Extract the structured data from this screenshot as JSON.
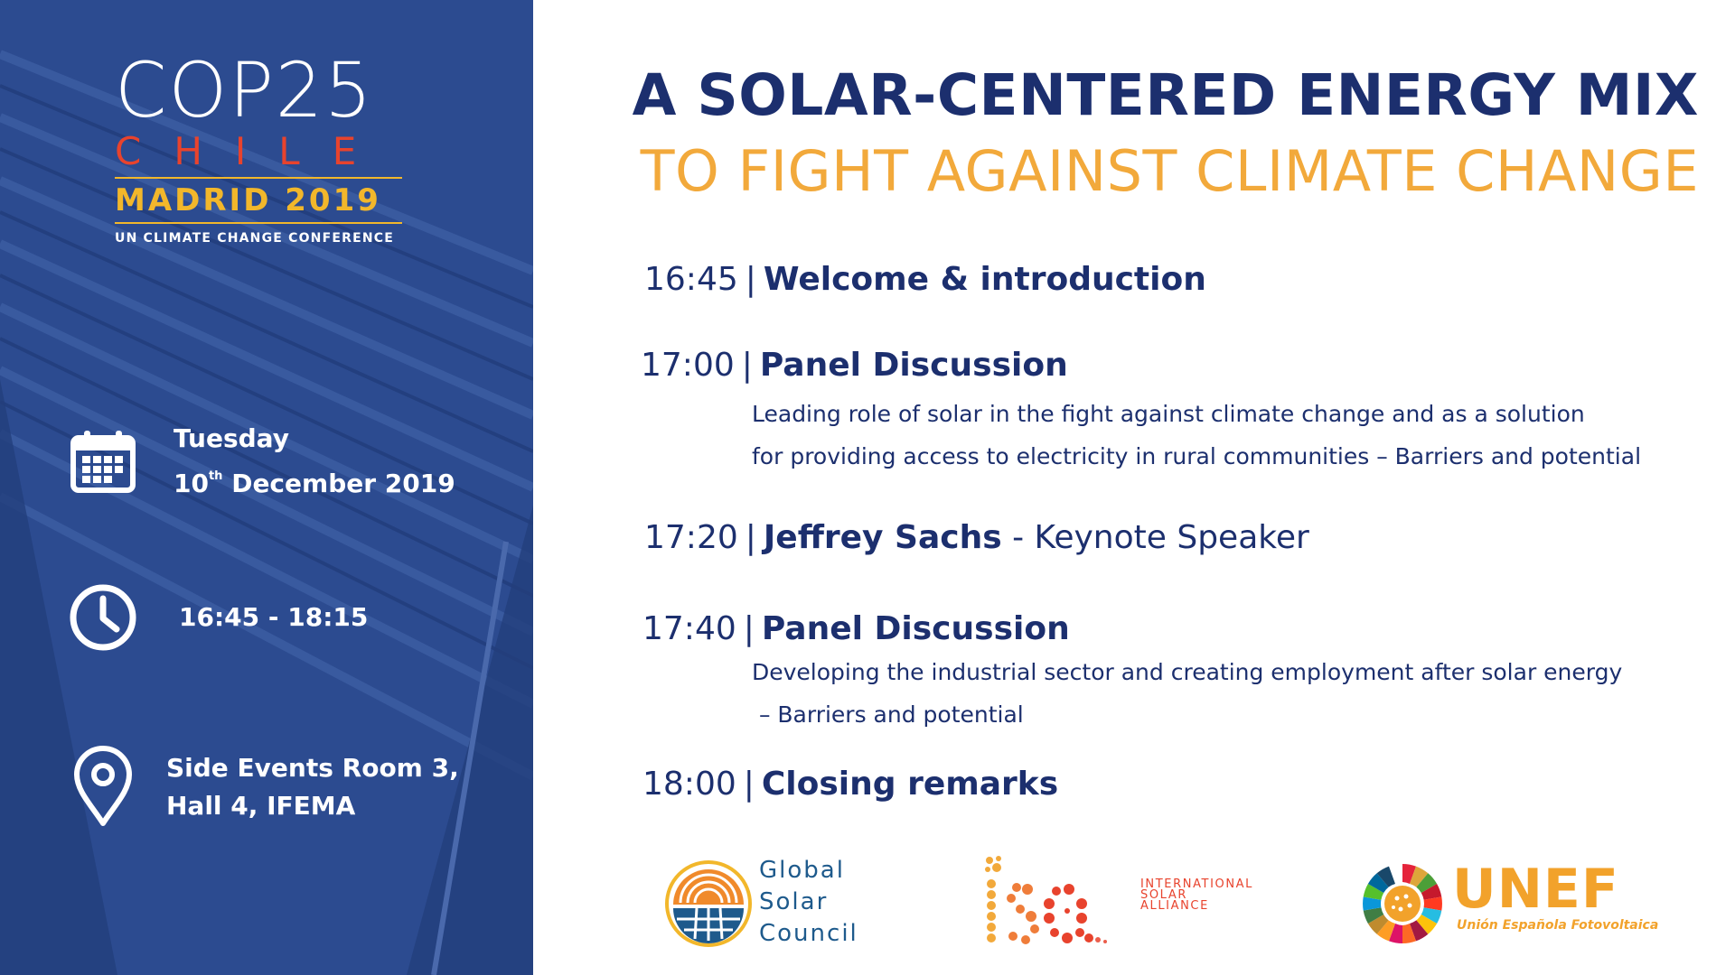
{
  "branding": {
    "cop_title": "COP25",
    "cop_country": "CHILE",
    "cop_city": "MADRID 2019",
    "cop_subtitle": "UN CLIMATE CHANGE CONFERENCE"
  },
  "event_info": {
    "day": "Tuesday",
    "date_day": "10",
    "date_suffix": "th",
    "date_rest": " December 2019",
    "time_range": "16:45 - 18:15",
    "location_line1": "Side Events Room 3,",
    "location_line2": "Hall 4, IFEMA",
    "icons": [
      "calendar-icon",
      "clock-icon",
      "location-pin-icon"
    ]
  },
  "headline": {
    "line1": "A SOLAR-CENTERED ENERGY MIX",
    "line2": "TO FIGHT AGAINST CLIMATE CHANGE"
  },
  "agenda": [
    {
      "time": "16:45",
      "separator": "|",
      "title": "Welcome & introduction",
      "extra": "",
      "description": []
    },
    {
      "time": "17:00",
      "separator": "|",
      "title": "Panel Discussion",
      "extra": "",
      "description": [
        "Leading role of solar in the fight against climate change and as a solution",
        "for providing access to electricity in rural communities – Barriers and potential"
      ]
    },
    {
      "time": "17:20",
      "separator": "|",
      "title": "Jeffrey Sachs",
      "extra": " - Keynote Speaker",
      "description": []
    },
    {
      "time": "17:40",
      "separator": "|",
      "title": "Panel Discussion",
      "extra": "",
      "description": [
        "Developing the industrial sector and creating employment after solar energy",
        " – Barriers and potential"
      ]
    },
    {
      "time": "18:00",
      "separator": "|",
      "title": "Closing remarks",
      "extra": "",
      "description": []
    }
  ],
  "partners": {
    "gsc_line1": "Global",
    "gsc_line2": "Solar",
    "gsc_line3": "Council",
    "isa_line1": "INTERNATIONAL",
    "isa_line2": "SOLAR",
    "isa_line3": "ALLIANCE",
    "isa_mark": "isa",
    "unef_word": "UNEF",
    "unef_subtitle": "Unión Española Fotovoltaica"
  },
  "colors": {
    "panel_blue": "#2a4a8f",
    "navy": "#1c2f6e",
    "orange": "#f2a93b",
    "red": "#e8432d",
    "gold": "#f2b72b"
  }
}
